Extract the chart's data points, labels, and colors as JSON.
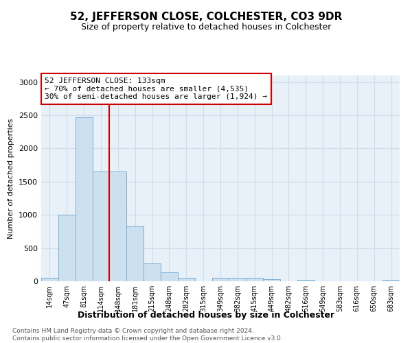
{
  "title": "52, JEFFERSON CLOSE, COLCHESTER, CO3 9DR",
  "subtitle": "Size of property relative to detached houses in Colchester",
  "xlabel": "Distribution of detached houses by size in Colchester",
  "ylabel": "Number of detached properties",
  "categories": [
    "14sqm",
    "47sqm",
    "81sqm",
    "114sqm",
    "148sqm",
    "181sqm",
    "215sqm",
    "248sqm",
    "282sqm",
    "315sqm",
    "349sqm",
    "382sqm",
    "415sqm",
    "449sqm",
    "482sqm",
    "516sqm",
    "549sqm",
    "583sqm",
    "616sqm",
    "650sqm",
    "683sqm"
  ],
  "values": [
    50,
    1000,
    2470,
    1650,
    1650,
    830,
    270,
    130,
    50,
    0,
    50,
    50,
    50,
    30,
    0,
    20,
    0,
    0,
    0,
    0,
    20
  ],
  "bar_color": "#cce0f0",
  "bar_edgecolor": "#7bafd4",
  "vline_position": 3.5,
  "vline_color": "#cc0000",
  "annotation_line1": "52 JEFFERSON CLOSE: 133sqm",
  "annotation_line2": "← 70% of detached houses are smaller (4,535)",
  "annotation_line3": "30% of semi-detached houses are larger (1,924) →",
  "annotation_box_edgecolor": "#cc0000",
  "ylim": [
    0,
    3100
  ],
  "yticks": [
    0,
    500,
    1000,
    1500,
    2000,
    2500,
    3000
  ],
  "footer": "Contains HM Land Registry data © Crown copyright and database right 2024.\nContains public sector information licensed under the Open Government Licence v3.0.",
  "grid_color": "#d0dce8",
  "background_color": "#e8f0f8"
}
